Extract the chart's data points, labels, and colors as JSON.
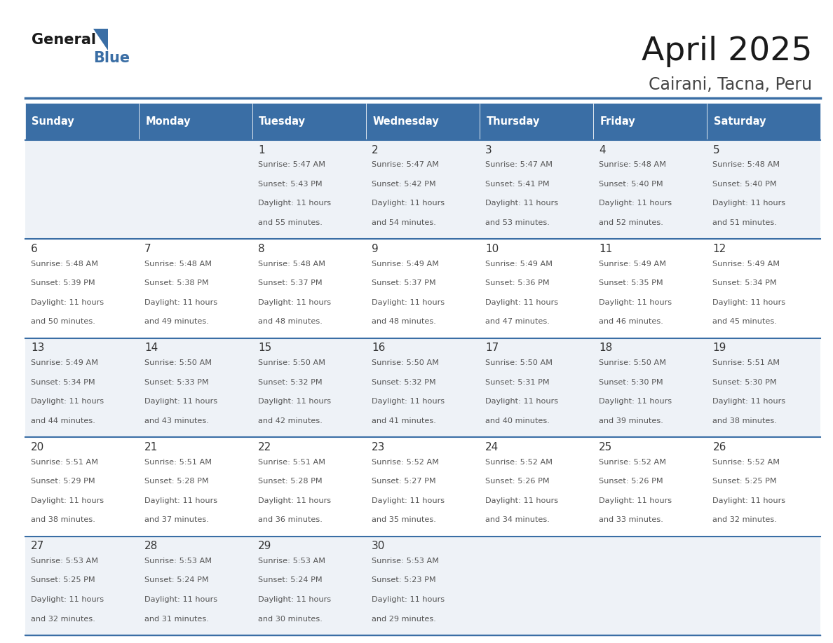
{
  "title": "April 2025",
  "subtitle": "Cairani, Tacna, Peru",
  "header_bg_color": "#3a6ea5",
  "header_text_color": "#ffffff",
  "cell_bg_even": "#eef2f7",
  "cell_bg_odd": "#ffffff",
  "cell_text_color": "#333333",
  "day_num_color": "#333333",
  "border_color": "#3a6ea5",
  "days_of_week": [
    "Sunday",
    "Monday",
    "Tuesday",
    "Wednesday",
    "Thursday",
    "Friday",
    "Saturday"
  ],
  "calendar": [
    [
      {
        "day": "",
        "sunrise": "",
        "sunset": "",
        "daylight_hours": 0,
        "daylight_minutes": 0
      },
      {
        "day": "",
        "sunrise": "",
        "sunset": "",
        "daylight_hours": 0,
        "daylight_minutes": 0
      },
      {
        "day": "1",
        "sunrise": "5:47 AM",
        "sunset": "5:43 PM",
        "daylight_hours": 11,
        "daylight_minutes": 55
      },
      {
        "day": "2",
        "sunrise": "5:47 AM",
        "sunset": "5:42 PM",
        "daylight_hours": 11,
        "daylight_minutes": 54
      },
      {
        "day": "3",
        "sunrise": "5:47 AM",
        "sunset": "5:41 PM",
        "daylight_hours": 11,
        "daylight_minutes": 53
      },
      {
        "day": "4",
        "sunrise": "5:48 AM",
        "sunset": "5:40 PM",
        "daylight_hours": 11,
        "daylight_minutes": 52
      },
      {
        "day": "5",
        "sunrise": "5:48 AM",
        "sunset": "5:40 PM",
        "daylight_hours": 11,
        "daylight_minutes": 51
      }
    ],
    [
      {
        "day": "6",
        "sunrise": "5:48 AM",
        "sunset": "5:39 PM",
        "daylight_hours": 11,
        "daylight_minutes": 50
      },
      {
        "day": "7",
        "sunrise": "5:48 AM",
        "sunset": "5:38 PM",
        "daylight_hours": 11,
        "daylight_minutes": 49
      },
      {
        "day": "8",
        "sunrise": "5:48 AM",
        "sunset": "5:37 PM",
        "daylight_hours": 11,
        "daylight_minutes": 48
      },
      {
        "day": "9",
        "sunrise": "5:49 AM",
        "sunset": "5:37 PM",
        "daylight_hours": 11,
        "daylight_minutes": 48
      },
      {
        "day": "10",
        "sunrise": "5:49 AM",
        "sunset": "5:36 PM",
        "daylight_hours": 11,
        "daylight_minutes": 47
      },
      {
        "day": "11",
        "sunrise": "5:49 AM",
        "sunset": "5:35 PM",
        "daylight_hours": 11,
        "daylight_minutes": 46
      },
      {
        "day": "12",
        "sunrise": "5:49 AM",
        "sunset": "5:34 PM",
        "daylight_hours": 11,
        "daylight_minutes": 45
      }
    ],
    [
      {
        "day": "13",
        "sunrise": "5:49 AM",
        "sunset": "5:34 PM",
        "daylight_hours": 11,
        "daylight_minutes": 44
      },
      {
        "day": "14",
        "sunrise": "5:50 AM",
        "sunset": "5:33 PM",
        "daylight_hours": 11,
        "daylight_minutes": 43
      },
      {
        "day": "15",
        "sunrise": "5:50 AM",
        "sunset": "5:32 PM",
        "daylight_hours": 11,
        "daylight_minutes": 42
      },
      {
        "day": "16",
        "sunrise": "5:50 AM",
        "sunset": "5:32 PM",
        "daylight_hours": 11,
        "daylight_minutes": 41
      },
      {
        "day": "17",
        "sunrise": "5:50 AM",
        "sunset": "5:31 PM",
        "daylight_hours": 11,
        "daylight_minutes": 40
      },
      {
        "day": "18",
        "sunrise": "5:50 AM",
        "sunset": "5:30 PM",
        "daylight_hours": 11,
        "daylight_minutes": 39
      },
      {
        "day": "19",
        "sunrise": "5:51 AM",
        "sunset": "5:30 PM",
        "daylight_hours": 11,
        "daylight_minutes": 38
      }
    ],
    [
      {
        "day": "20",
        "sunrise": "5:51 AM",
        "sunset": "5:29 PM",
        "daylight_hours": 11,
        "daylight_minutes": 38
      },
      {
        "day": "21",
        "sunrise": "5:51 AM",
        "sunset": "5:28 PM",
        "daylight_hours": 11,
        "daylight_minutes": 37
      },
      {
        "day": "22",
        "sunrise": "5:51 AM",
        "sunset": "5:28 PM",
        "daylight_hours": 11,
        "daylight_minutes": 36
      },
      {
        "day": "23",
        "sunrise": "5:52 AM",
        "sunset": "5:27 PM",
        "daylight_hours": 11,
        "daylight_minutes": 35
      },
      {
        "day": "24",
        "sunrise": "5:52 AM",
        "sunset": "5:26 PM",
        "daylight_hours": 11,
        "daylight_minutes": 34
      },
      {
        "day": "25",
        "sunrise": "5:52 AM",
        "sunset": "5:26 PM",
        "daylight_hours": 11,
        "daylight_minutes": 33
      },
      {
        "day": "26",
        "sunrise": "5:52 AM",
        "sunset": "5:25 PM",
        "daylight_hours": 11,
        "daylight_minutes": 32
      }
    ],
    [
      {
        "day": "27",
        "sunrise": "5:53 AM",
        "sunset": "5:25 PM",
        "daylight_hours": 11,
        "daylight_minutes": 32
      },
      {
        "day": "28",
        "sunrise": "5:53 AM",
        "sunset": "5:24 PM",
        "daylight_hours": 11,
        "daylight_minutes": 31
      },
      {
        "day": "29",
        "sunrise": "5:53 AM",
        "sunset": "5:24 PM",
        "daylight_hours": 11,
        "daylight_minutes": 30
      },
      {
        "day": "30",
        "sunrise": "5:53 AM",
        "sunset": "5:23 PM",
        "daylight_hours": 11,
        "daylight_minutes": 29
      },
      {
        "day": "",
        "sunrise": "",
        "sunset": "",
        "daylight_hours": 0,
        "daylight_minutes": 0
      },
      {
        "day": "",
        "sunrise": "",
        "sunset": "",
        "daylight_hours": 0,
        "daylight_minutes": 0
      },
      {
        "day": "",
        "sunrise": "",
        "sunset": "",
        "daylight_hours": 0,
        "daylight_minutes": 0
      }
    ]
  ]
}
